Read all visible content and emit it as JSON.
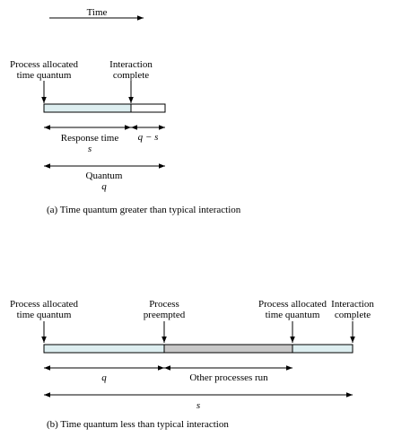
{
  "top_arrow": {
    "label": "Time"
  },
  "diagram_a": {
    "label_process_allocated_l1": "Process allocated",
    "label_process_allocated_l2": "time quantum",
    "label_interaction_l1": "Interaction",
    "label_interaction_l2": "complete",
    "label_response_time": "Response time",
    "label_s": "s",
    "label_q_minus_s": "q − s",
    "label_quantum": "Quantum",
    "label_q": "q",
    "caption": "(a) Time quantum greater than typical interaction",
    "colors": {
      "active": "#ddeef0",
      "idle": "#ffffff"
    }
  },
  "diagram_b": {
    "label_pa1_l1": "Process allocated",
    "label_pa1_l2": "time quantum",
    "label_preempted_l1": "Process",
    "label_preempted_l2": "preempted",
    "label_pa2_l1": "Process allocated",
    "label_pa2_l2": "time quantum",
    "label_interaction_l1": "Interaction",
    "label_interaction_l2": "complete",
    "label_q": "q",
    "label_other": "Other processes run",
    "label_s": "s",
    "caption": "(b) Time quantum less than typical interaction",
    "colors": {
      "active": "#ddeef0",
      "other": "#c8c8c8"
    }
  }
}
